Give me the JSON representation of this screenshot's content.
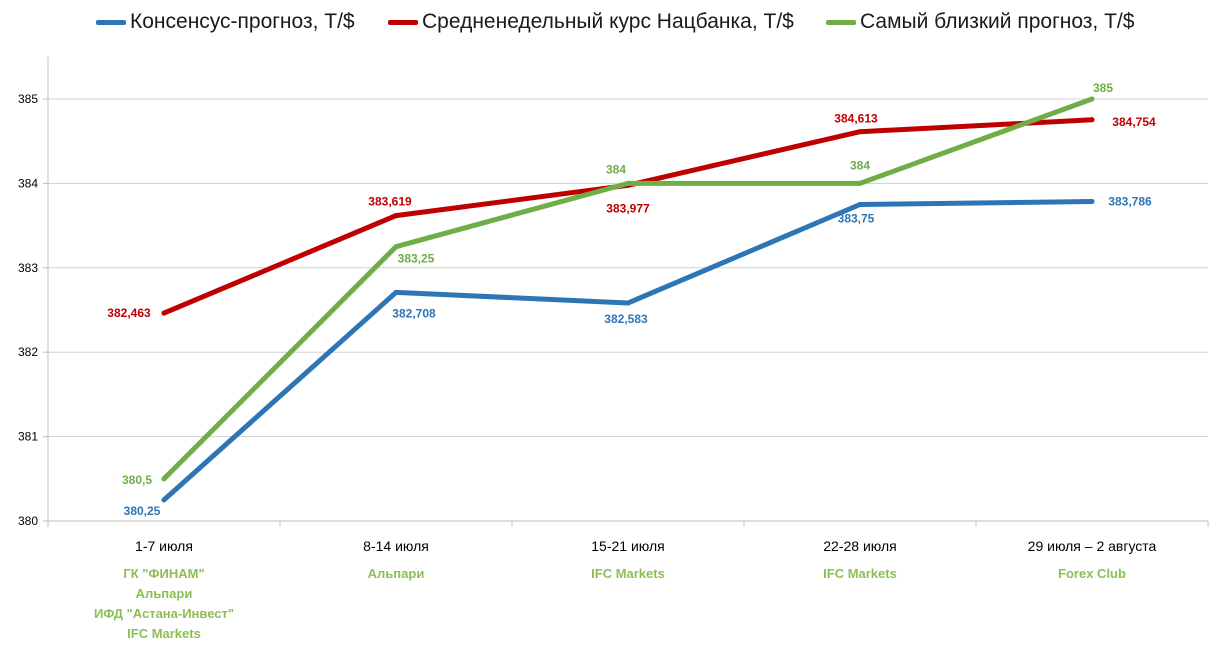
{
  "chart_data": {
    "type": "line",
    "title": "",
    "xlabel": "",
    "ylabel": "",
    "ylim": [
      380,
      385.5
    ],
    "yticks": [
      "380",
      "381",
      "382",
      "383",
      "384",
      "385"
    ],
    "grid": true,
    "legend_position": "top",
    "categories": [
      "1-7 июля",
      "8-14 июля",
      "15-21 июля",
      "22-28 июля",
      "29 июля – 2 августа"
    ],
    "forecasters": [
      [
        "ГК \"ФИНАМ\"",
        "Альпари",
        "ИФД \"Астана-Инвест\"",
        "IFC Markets"
      ],
      [
        "Альпари"
      ],
      [
        "IFC Markets"
      ],
      [
        "IFC Markets"
      ],
      [
        "Forex Club"
      ]
    ],
    "series": [
      {
        "name": "Консенсус-прогноз, Т/$",
        "color": "#2E75B6",
        "values": [
          380.25,
          382.708,
          382.583,
          383.75,
          383.786
        ],
        "labels": [
          "380,25",
          "382,708",
          "382,583",
          "383,75",
          "383,786"
        ]
      },
      {
        "name": "Средненедельный курс Нацбанка, Т/$",
        "color": "#C00000",
        "values": [
          382.463,
          383.619,
          383.977,
          384.613,
          384.754
        ],
        "labels": [
          "382,463",
          "383,619",
          "383,977",
          "384,613",
          "384,754"
        ]
      },
      {
        "name": "Самый близкий прогноз, Т/$",
        "color": "#70AD47",
        "values": [
          380.5,
          383.25,
          384,
          384,
          385
        ],
        "labels": [
          "380,5",
          "383,25",
          "384",
          "384",
          "385"
        ]
      }
    ]
  }
}
